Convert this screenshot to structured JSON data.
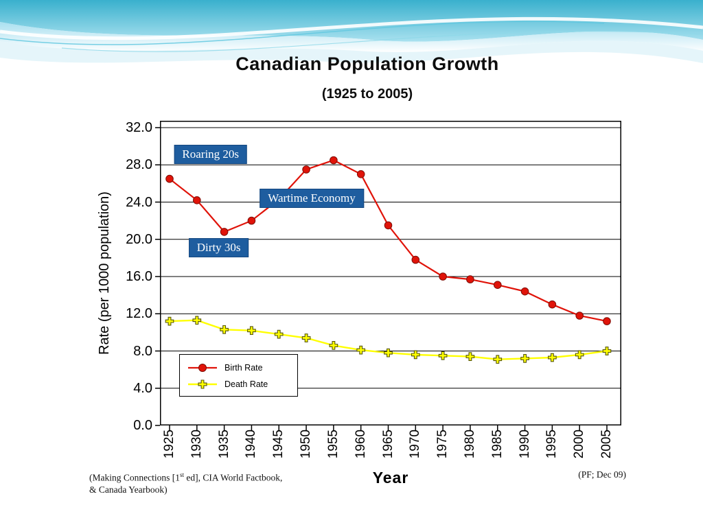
{
  "slide": {
    "title": "Canadian Population Growth",
    "subtitle": "(1925 to 2005)"
  },
  "footer": {
    "left_prefix": "(Making Connections [1",
    "left_sup": "st",
    "left_rest": " ed], CIA World Factbook,",
    "left_line2": "& Canada Yearbook)",
    "right": "(PF; Dec 09)"
  },
  "colors": {
    "annotation_blue": "#1e5d9f",
    "birth_red": "#e01309",
    "death_yellow": "#ffff00"
  },
  "chart_data": {
    "type": "line",
    "title": "Canadian Population Growth",
    "subtitle": "(1925 to 2005)",
    "xlabel": "Year",
    "ylabel": "Rate (per 1000 population)",
    "ylim": [
      0,
      32
    ],
    "y_ticks": [
      0,
      4,
      8,
      12,
      16,
      20,
      24,
      28,
      32
    ],
    "grid": true,
    "legend_position": "inside lower-left",
    "x": [
      1925,
      1930,
      1935,
      1940,
      1945,
      1950,
      1955,
      1960,
      1965,
      1970,
      1975,
      1980,
      1985,
      1990,
      1995,
      2000,
      2005
    ],
    "series": [
      {
        "name": "Birth Rate",
        "marker": "circle",
        "color": "#e01309",
        "marker_stroke": "#7d0d06",
        "values": [
          26.5,
          24.2,
          20.8,
          22.0,
          24.3,
          27.5,
          28.5,
          27.0,
          21.5,
          17.8,
          16.0,
          15.7,
          15.1,
          14.4,
          13.0,
          11.8,
          11.2
        ]
      },
      {
        "name": "Death Rate",
        "marker": "plus",
        "color": "#ffff00",
        "marker_stroke": "#55550a",
        "values": [
          11.2,
          11.3,
          10.3,
          10.2,
          9.8,
          9.4,
          8.6,
          8.1,
          7.8,
          7.6,
          7.5,
          7.4,
          7.1,
          7.2,
          7.3,
          7.6,
          8.0
        ]
      }
    ],
    "annotations": [
      {
        "label": "Roaring 20s",
        "year": 1932.5,
        "value": 29.1
      },
      {
        "label": "Wartime Economy",
        "year": 1951,
        "value": 24.4
      },
      {
        "label": "Dirty 30s",
        "year": 1934,
        "value": 19.1
      }
    ]
  }
}
